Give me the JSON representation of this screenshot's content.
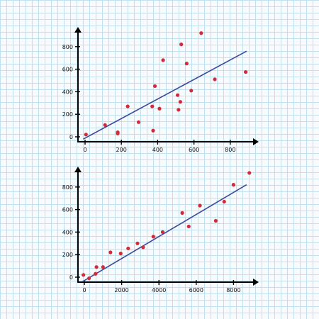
{
  "colors": {
    "points": "#d22a3b",
    "fit_line": "#3d4a9c",
    "axes": "#000000"
  },
  "chart_data": [
    {
      "type": "scatter",
      "title": "",
      "xlabel": "",
      "ylabel": "",
      "xlim": [
        -20,
        920
      ],
      "ylim": [
        -40,
        1000
      ],
      "xticks": [
        0,
        200,
        400,
        600,
        800
      ],
      "xtick_labels": [
        "0",
        "200",
        "400",
        "600",
        "800"
      ],
      "yticks": [
        0,
        200,
        400,
        600,
        800
      ],
      "ytick_labels": [
        "0",
        "200",
        "400",
        "600",
        "800"
      ],
      "grid": false,
      "trendline": {
        "x": [
          -10,
          890
        ],
        "y": [
          -20,
          760
        ]
      },
      "points": [
        {
          "x": 5,
          "y": 20
        },
        {
          "x": 110,
          "y": 105
        },
        {
          "x": 180,
          "y": 40
        },
        {
          "x": 180,
          "y": 30
        },
        {
          "x": 235,
          "y": 270
        },
        {
          "x": 295,
          "y": 130
        },
        {
          "x": 370,
          "y": 270
        },
        {
          "x": 375,
          "y": 55
        },
        {
          "x": 385,
          "y": 450
        },
        {
          "x": 410,
          "y": 250
        },
        {
          "x": 430,
          "y": 680
        },
        {
          "x": 510,
          "y": 370
        },
        {
          "x": 515,
          "y": 240
        },
        {
          "x": 525,
          "y": 310
        },
        {
          "x": 530,
          "y": 820
        },
        {
          "x": 560,
          "y": 650
        },
        {
          "x": 585,
          "y": 410
        },
        {
          "x": 640,
          "y": 920
        },
        {
          "x": 715,
          "y": 510
        },
        {
          "x": 885,
          "y": 575
        }
      ]
    },
    {
      "type": "scatter",
      "title": "",
      "xlabel": "",
      "ylabel": "",
      "xlim": [
        -200,
        9200
      ],
      "ylim": [
        -40,
        1000
      ],
      "xticks": [
        0,
        2000,
        4000,
        6000,
        8000
      ],
      "xtick_labels": [
        "0",
        "2000",
        "4000",
        "6000",
        "8000"
      ],
      "yticks": [
        0,
        200,
        400,
        600,
        800
      ],
      "ytick_labels": [
        "0",
        "200",
        "400",
        "600",
        "800"
      ],
      "grid": false,
      "trendline": {
        "x": [
          -100,
          8700
        ],
        "y": [
          -40,
          820
        ]
      },
      "points": [
        {
          "x": -50,
          "y": 20
        },
        {
          "x": 250,
          "y": -10
        },
        {
          "x": 600,
          "y": 30
        },
        {
          "x": 650,
          "y": 90
        },
        {
          "x": 1000,
          "y": 90
        },
        {
          "x": 1400,
          "y": 220
        },
        {
          "x": 1950,
          "y": 210
        },
        {
          "x": 2350,
          "y": 255
        },
        {
          "x": 2850,
          "y": 300
        },
        {
          "x": 3150,
          "y": 265
        },
        {
          "x": 3700,
          "y": 360
        },
        {
          "x": 4200,
          "y": 400
        },
        {
          "x": 5250,
          "y": 570
        },
        {
          "x": 5600,
          "y": 450
        },
        {
          "x": 6200,
          "y": 635
        },
        {
          "x": 7050,
          "y": 500
        },
        {
          "x": 7500,
          "y": 670
        },
        {
          "x": 8000,
          "y": 820
        },
        {
          "x": 8850,
          "y": 925
        }
      ]
    }
  ]
}
